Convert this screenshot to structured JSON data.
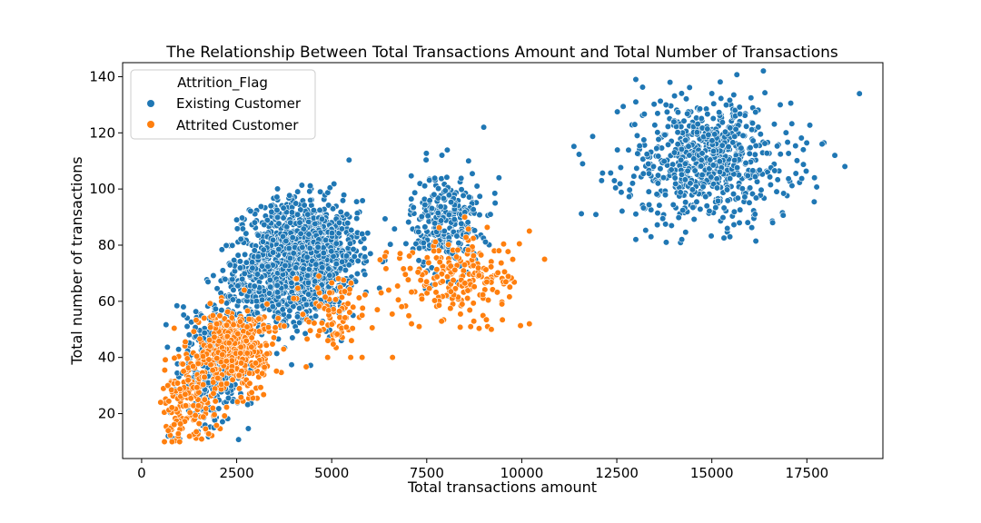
{
  "chart_data": {
    "type": "scatter",
    "title": "The Relationship Between Total Transactions Amount and Total Number of Transactions",
    "xlabel": "Total transactions amount",
    "ylabel": "Total number of transactions",
    "xlim": [
      -500,
      19500
    ],
    "ylim": [
      4,
      145
    ],
    "x_ticks": [
      0,
      2500,
      5000,
      7500,
      10000,
      12500,
      15000,
      17500
    ],
    "y_ticks": [
      20,
      40,
      60,
      80,
      100,
      120,
      140
    ],
    "grid": false,
    "legend": {
      "title": "Attrition_Flag",
      "placement": "top-left",
      "entries": [
        "Existing Customer",
        "Attrited Customer"
      ]
    },
    "series": [
      {
        "name": "Existing Customer",
        "color": "#1f77b4",
        "clusters": [
          {
            "x_mean": 1800,
            "x_sd": 450,
            "y_mean": 38,
            "y_sd": 12,
            "count": 260
          },
          {
            "x_mean": 4300,
            "x_sd": 700,
            "y_mean": 76,
            "y_sd": 10,
            "count": 1150
          },
          {
            "x_mean": 3200,
            "x_sd": 600,
            "y_mean": 66,
            "y_sd": 10,
            "count": 300
          },
          {
            "x_mean": 8000,
            "x_sd": 450,
            "y_mean": 88,
            "y_sd": 9,
            "count": 290
          },
          {
            "x_mean": 14900,
            "x_sd": 1100,
            "y_mean": 110,
            "y_sd": 11,
            "count": 680
          }
        ],
        "points": [
          [
            13000,
            139
          ],
          [
            13900,
            138
          ],
          [
            15000,
            134
          ],
          [
            13000,
            131
          ],
          [
            16800,
            130
          ],
          [
            13400,
            83
          ],
          [
            13800,
            81
          ],
          [
            13000,
            82
          ],
          [
            16600,
            88
          ],
          [
            17900,
            116
          ],
          [
            18500,
            108
          ],
          [
            17700,
            104
          ],
          [
            11600,
            109
          ],
          [
            12100,
            103
          ],
          [
            9000,
            122
          ],
          [
            8600,
            110
          ],
          [
            7900,
            112
          ],
          [
            9400,
            104
          ],
          [
            9300,
            95
          ],
          [
            700,
            12
          ],
          [
            1000,
            11
          ],
          [
            1900,
            15
          ],
          [
            1100,
            58
          ],
          [
            3400,
            94
          ],
          [
            2500,
            89
          ],
          [
            5800,
            84
          ],
          [
            5400,
            91
          ],
          [
            5200,
            88
          ],
          [
            4700,
            99
          ]
        ]
      },
      {
        "name": "Attrited Customer",
        "color": "#ff7f0e",
        "clusters": [
          {
            "x_mean": 1200,
            "x_sd": 400,
            "y_mean": 25,
            "y_sd": 8,
            "count": 160
          },
          {
            "x_mean": 2400,
            "x_sd": 450,
            "y_mean": 43,
            "y_sd": 7,
            "count": 420
          },
          {
            "x_mean": 5000,
            "x_sd": 400,
            "y_mean": 56,
            "y_sd": 7,
            "count": 80
          },
          {
            "x_mean": 8400,
            "x_sd": 800,
            "y_mean": 68,
            "y_sd": 7,
            "count": 200
          }
        ],
        "points": [
          [
            5500,
            40
          ],
          [
            5800,
            40
          ],
          [
            6600,
            40
          ],
          [
            4900,
            46
          ],
          [
            9100,
            51
          ],
          [
            9200,
            50
          ],
          [
            10200,
            52
          ],
          [
            10200,
            85
          ],
          [
            10600,
            75
          ],
          [
            9400,
            78
          ],
          [
            6400,
            76
          ],
          [
            6800,
            77
          ],
          [
            6300,
            63
          ],
          [
            5800,
            55
          ],
          [
            7100,
            52
          ],
          [
            7300,
            51
          ],
          [
            6200,
            57
          ],
          [
            6500,
            64
          ],
          [
            600,
            10
          ],
          [
            800,
            10
          ],
          [
            1000,
            10
          ],
          [
            700,
            14
          ],
          [
            500,
            24
          ],
          [
            2100,
            60
          ],
          [
            2700,
            64
          ],
          [
            3100,
            39
          ],
          [
            3000,
            38
          ],
          [
            4000,
            61
          ],
          [
            8500,
            90
          ]
        ]
      }
    ]
  }
}
